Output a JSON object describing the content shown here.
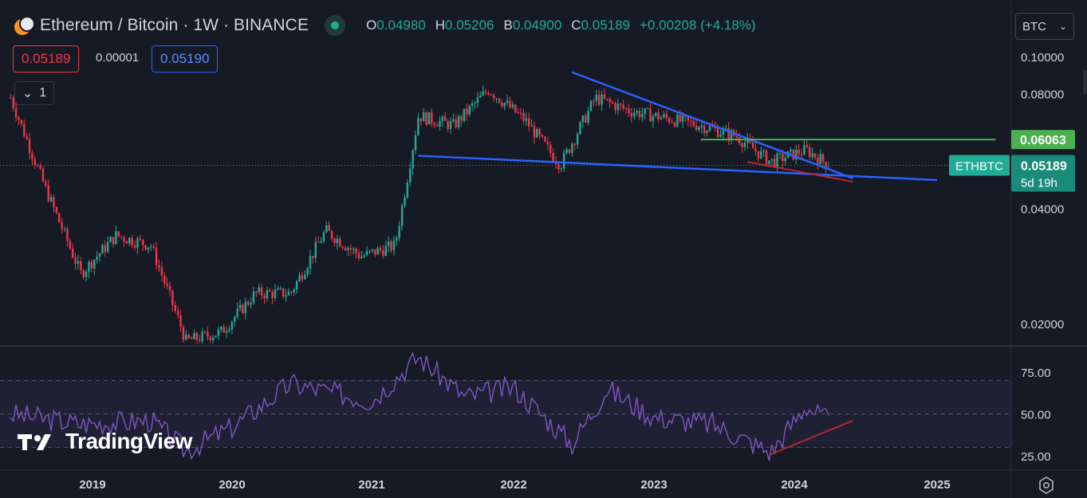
{
  "header": {
    "title": "Ethereum / Bitcoin · 1W · BINANCE",
    "ohlc": [
      {
        "key": "O",
        "value": "0.04980"
      },
      {
        "key": "H",
        "value": "0.05206"
      },
      {
        "key": "B",
        "value": "0.04900"
      },
      {
        "key": "C",
        "value": "0.05189"
      }
    ],
    "change": "+0.00208 (+4.18%)",
    "bid": "0.05189",
    "spread": "0.00001",
    "ask": "0.05190",
    "indicator_count": "1",
    "currency": "BTC"
  },
  "colors": {
    "up": "#22ab94",
    "down": "#f23645",
    "trendline": "#2962ff",
    "resistance": "#4caf50",
    "divergence": "#b22833",
    "rsi": "#7e57c2"
  },
  "chart_data": {
    "type": "candlestick",
    "symbol": "ETHBTC",
    "timeframe": "1W",
    "price_axis": {
      "ticks": [
        "0.10000",
        "0.08000",
        "0.04000",
        "0.02000"
      ],
      "scale": "log"
    },
    "time_axis": {
      "ticks": [
        "2019",
        "2020",
        "2021",
        "2022",
        "2023",
        "2024",
        "2025"
      ]
    },
    "last_price_label": {
      "symbol": "ETHBTC",
      "price": "0.05189",
      "countdown": "5d 19h"
    },
    "level_label": "0.06063",
    "series": [
      {
        "name": "price_close_approx",
        "x": [
          "2018-06",
          "2018-09",
          "2018-12",
          "2019-03",
          "2019-06",
          "2019-09",
          "2019-12",
          "2020-03",
          "2020-06",
          "2020-09",
          "2020-12",
          "2021-03",
          "2021-05",
          "2021-08",
          "2021-11",
          "2022-02",
          "2022-05",
          "2022-08",
          "2022-11",
          "2023-02",
          "2023-05",
          "2023-08",
          "2023-11",
          "2024-02",
          "2024-04"
        ],
        "values": [
          0.078,
          0.045,
          0.027,
          0.034,
          0.032,
          0.018,
          0.019,
          0.024,
          0.024,
          0.035,
          0.03,
          0.032,
          0.07,
          0.066,
          0.082,
          0.068,
          0.052,
          0.078,
          0.072,
          0.069,
          0.066,
          0.062,
          0.053,
          0.057,
          0.05189
        ]
      }
    ],
    "lines": [
      {
        "name": "descending-resistance",
        "from": {
          "x": "2022-06",
          "y": 0.091
        },
        "to": {
          "x": "2024-06",
          "y": 0.048
        }
      },
      {
        "name": "support-trendline",
        "from": {
          "x": "2021-05",
          "y": 0.055
        },
        "to": {
          "x": "2025-01",
          "y": 0.0475
        }
      },
      {
        "name": "horizontal-level",
        "from": {
          "x": "2023-05",
          "y": 0.06063
        },
        "to": {
          "x": "2025-06",
          "y": 0.06063
        }
      },
      {
        "name": "price-divergence",
        "from": {
          "x": "2023-09",
          "y": 0.053
        },
        "to": {
          "x": "2024-06",
          "y": 0.047
        }
      }
    ],
    "rsi": {
      "ticks": [
        "75.00",
        "50.00",
        "25.00"
      ],
      "band": [
        30,
        70
      ],
      "x": [
        "2018-06",
        "2018-12",
        "2019-06",
        "2019-09",
        "2020-01",
        "2020-06",
        "2021-01",
        "2021-05",
        "2021-09",
        "2022-01",
        "2022-06",
        "2022-09",
        "2023-01",
        "2023-06",
        "2023-11",
        "2024-02",
        "2024-04"
      ],
      "values": [
        50,
        44,
        46,
        28,
        42,
        68,
        58,
        84,
        60,
        66,
        32,
        65,
        48,
        44,
        27,
        55,
        45
      ],
      "divergence_line": {
        "from": {
          "x": "2023-11",
          "y": 26
        },
        "to": {
          "x": "2024-06",
          "y": 46
        }
      }
    }
  },
  "branding": {
    "watermark": "TradingView"
  }
}
